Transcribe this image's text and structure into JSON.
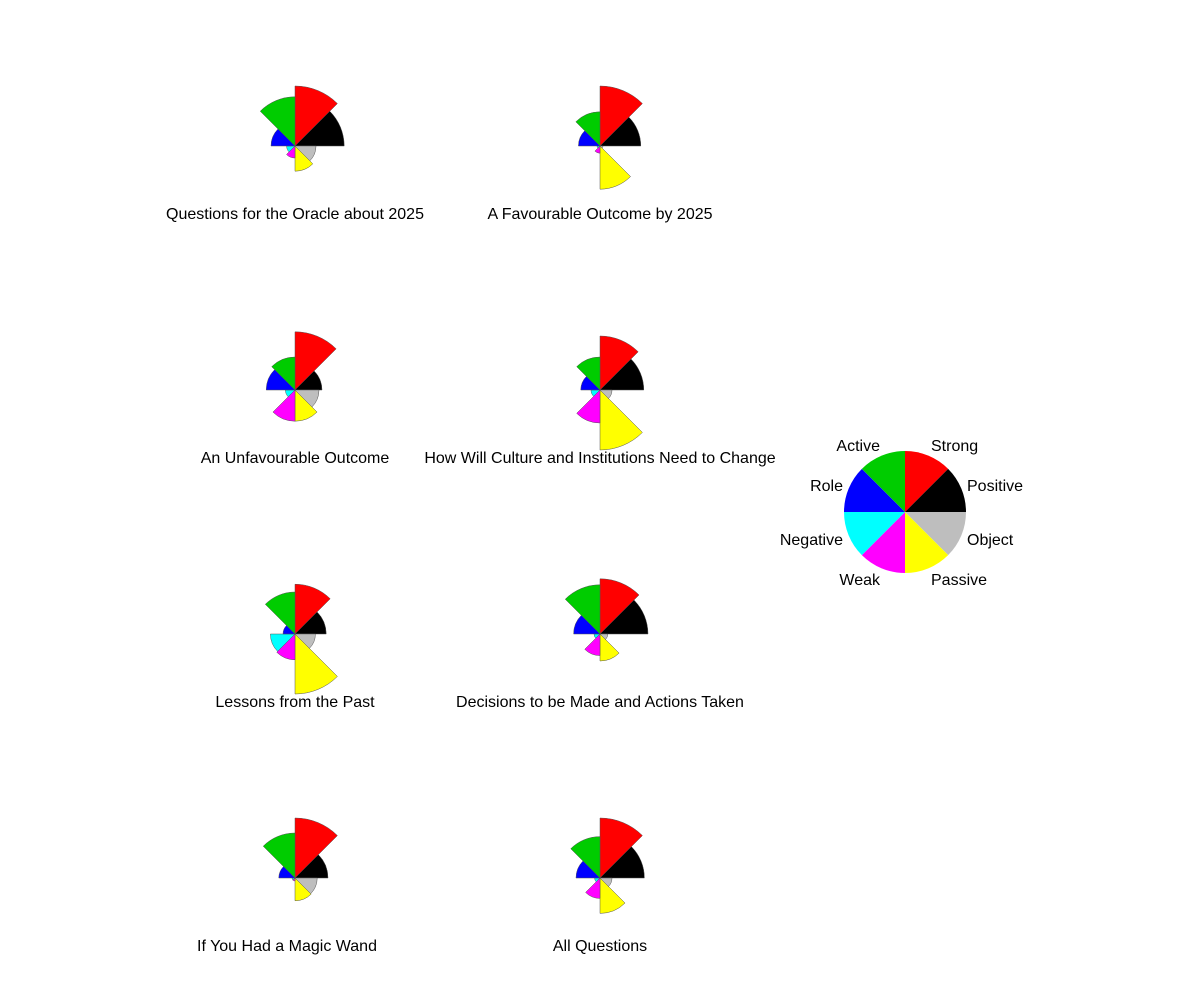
{
  "chart_data": {
    "type": "rose",
    "sectors": [
      "Strong",
      "Positive",
      "Object",
      "Passive",
      "Weak",
      "Negative",
      "Role",
      "Active"
    ],
    "colors": [
      "#ff0000",
      "#000000",
      "#bebebe",
      "#ffff00",
      "#ff00ff",
      "#00ffff",
      "#0000ff",
      "#00cc00"
    ],
    "panels": [
      {
        "title": "Questions for the Oracle about 2025",
        "values": [
          1.0,
          0.82,
          0.35,
          0.42,
          0.2,
          0.14,
          0.4,
          0.82
        ]
      },
      {
        "title": "A Favourable Outcome by 2025",
        "values": [
          1.0,
          0.68,
          0.05,
          0.72,
          0.12,
          0.05,
          0.36,
          0.57
        ]
      },
      {
        "title": "An Unfavourable Outcome",
        "values": [
          0.97,
          0.45,
          0.4,
          0.52,
          0.52,
          0.16,
          0.48,
          0.55
        ]
      },
      {
        "title": "How Will Culture and Institutions Need to Change",
        "values": [
          0.9,
          0.73,
          0.2,
          1.0,
          0.55,
          0.15,
          0.32,
          0.55
        ]
      },
      {
        "title": "Lessons from the Past",
        "values": [
          0.83,
          0.52,
          0.34,
          1.0,
          0.43,
          0.41,
          0.2,
          0.7
        ]
      },
      {
        "title": "Decisions to be Made and Actions Taken",
        "values": [
          0.92,
          0.8,
          0.13,
          0.45,
          0.36,
          0.1,
          0.44,
          0.82
        ]
      },
      {
        "title": "If You Had a  Magic Wand",
        "values": [
          1.0,
          0.55,
          0.37,
          0.38,
          0.05,
          0.05,
          0.27,
          0.75
        ]
      },
      {
        "title": "All Questions",
        "values": [
          1.0,
          0.74,
          0.2,
          0.59,
          0.34,
          0.09,
          0.4,
          0.69
        ]
      }
    ],
    "legend": {
      "labels": [
        "Strong",
        "Positive",
        "Object",
        "Passive",
        "Weak",
        "Negative",
        "Role",
        "Active"
      ],
      "placement": "right"
    }
  }
}
